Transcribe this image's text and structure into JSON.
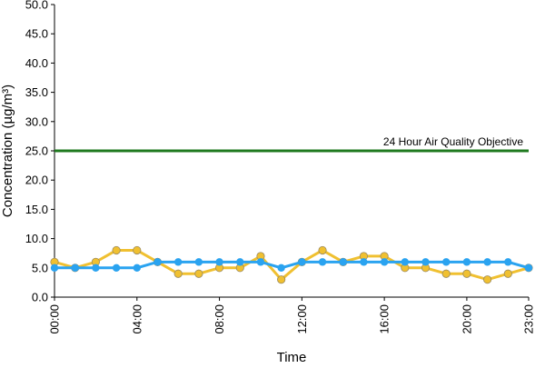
{
  "chart_data": {
    "type": "line",
    "title": "",
    "xlabel": "Time",
    "ylabel": "Concentration (µg/m³)",
    "ylim": [
      0,
      50
    ],
    "yticks": [
      "0.0",
      "5.0",
      "10.0",
      "15.0",
      "20.0",
      "25.0",
      "30.0",
      "35.0",
      "40.0",
      "45.0",
      "50.0"
    ],
    "x": [
      0,
      1,
      2,
      3,
      4,
      5,
      6,
      7,
      8,
      9,
      10,
      11,
      12,
      13,
      14,
      15,
      16,
      17,
      18,
      19,
      20,
      21,
      22,
      23
    ],
    "xticks": [
      {
        "x": 0,
        "label": "00:00"
      },
      {
        "x": 4,
        "label": "04:00"
      },
      {
        "x": 8,
        "label": "08:00"
      },
      {
        "x": 12,
        "label": "12:00"
      },
      {
        "x": 16,
        "label": "16:00"
      },
      {
        "x": 20,
        "label": "20:00"
      },
      {
        "x": 23,
        "label": "23:00"
      }
    ],
    "grid": false,
    "series": [
      {
        "color": "#f0c030",
        "values": [
          6,
          5,
          6,
          8,
          8,
          6,
          4,
          4,
          5,
          5,
          7,
          3,
          6,
          8,
          6,
          7,
          7,
          5,
          5,
          4,
          4,
          3,
          4,
          5
        ]
      },
      {
        "color": "#2aa3f0",
        "values": [
          5,
          5,
          5,
          5,
          5,
          6,
          6,
          6,
          6,
          6,
          6,
          5,
          6,
          6,
          6,
          6,
          6,
          6,
          6,
          6,
          6,
          6,
          6,
          5
        ]
      }
    ],
    "reference_line": {
      "value": 25,
      "label": "24 Hour Air Quality Objective",
      "color": "#1f7a1f"
    }
  }
}
